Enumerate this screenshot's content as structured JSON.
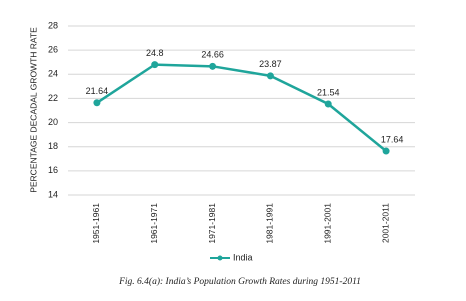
{
  "chart_data": {
    "type": "line",
    "y_axis_label": "PERCENTAGE DECADAL GROWTH RATE",
    "categories": [
      "1951-1961",
      "1961-1971",
      "1971-1981",
      "1981-1991",
      "1991-2001",
      "2001-2011"
    ],
    "series": [
      {
        "name": "India",
        "color": "#1fa59b",
        "values": [
          21.64,
          24.8,
          24.66,
          23.87,
          21.54,
          17.64
        ]
      }
    ],
    "ylim": [
      14,
      28
    ],
    "yticks": [
      14,
      16,
      18,
      20,
      22,
      24,
      26,
      28
    ],
    "grid": true,
    "legend": "bottom",
    "caption": "Fig. 6.4(a): India’s  Population Growth Rates during 1951-2011"
  }
}
